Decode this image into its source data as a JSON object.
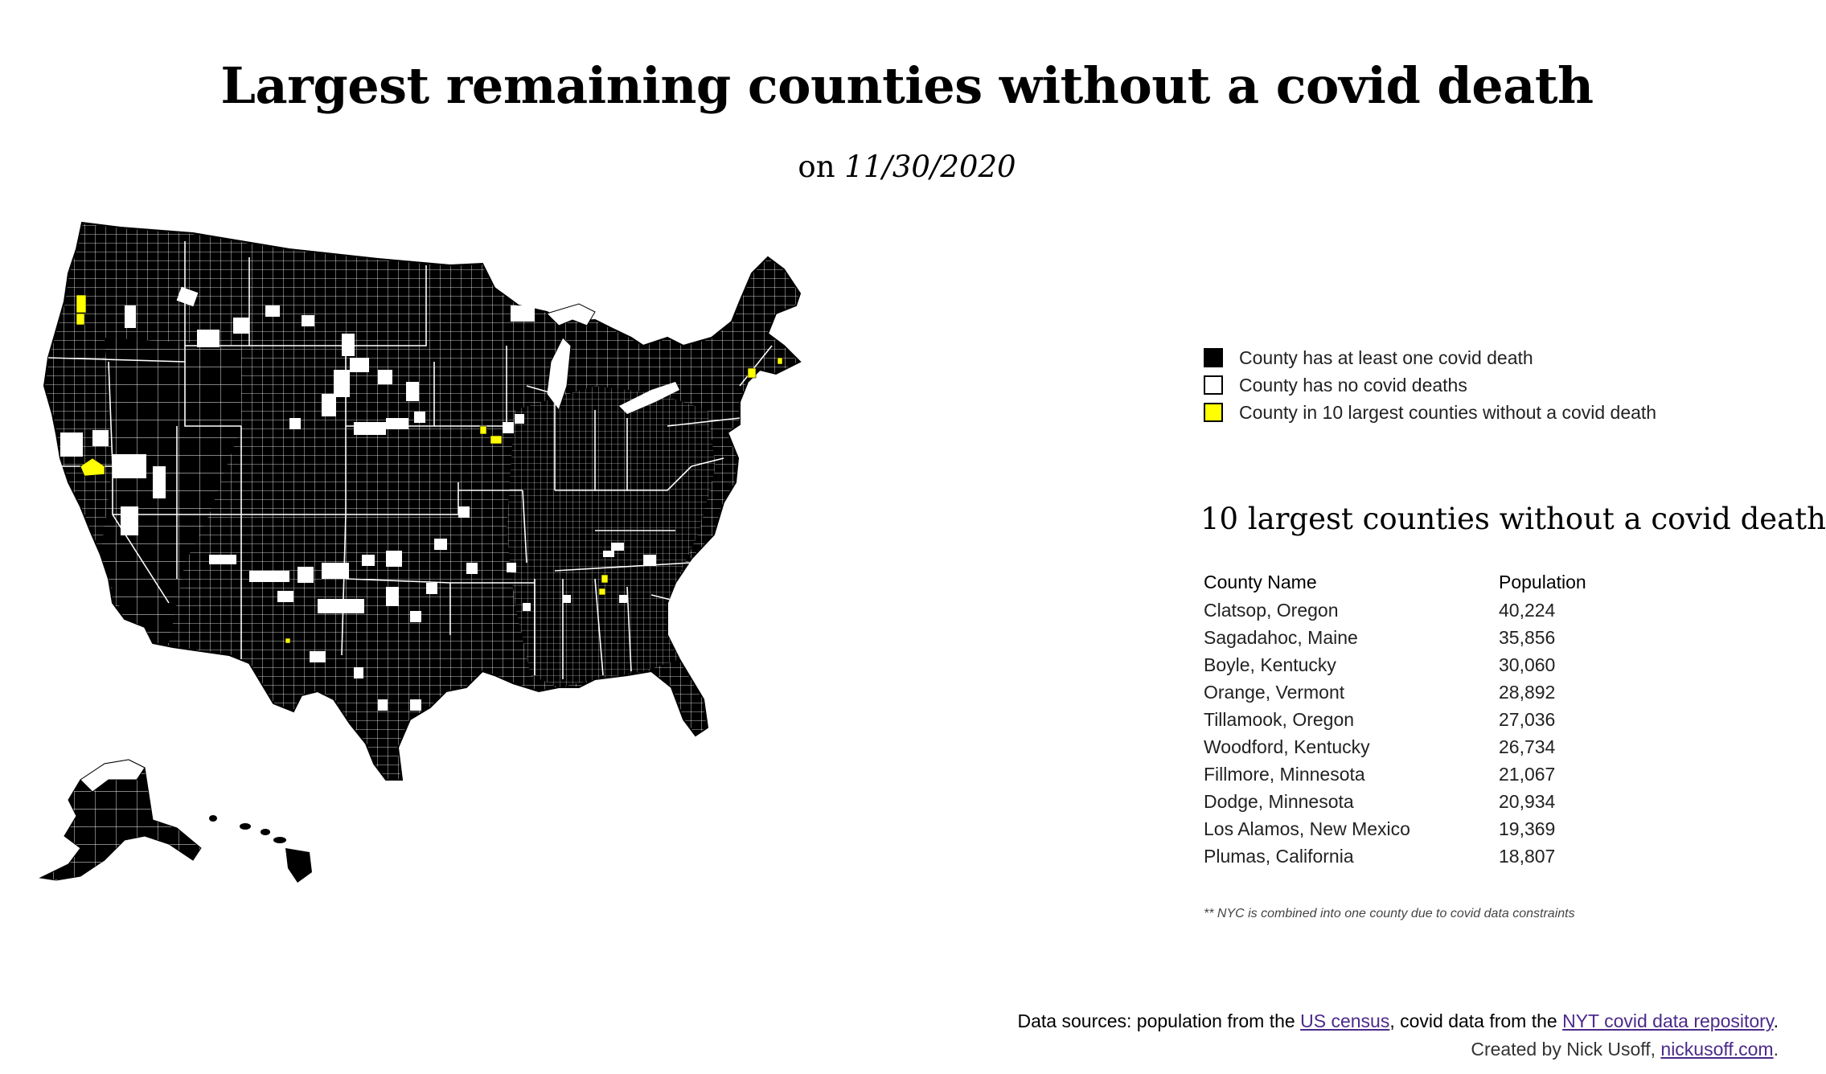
{
  "title": "Largest remaining counties without a covid death",
  "subtitle": {
    "prefix": "on",
    "date": "11/30/2020"
  },
  "legend": [
    {
      "label": "County has at least one covid death",
      "color": "#000000"
    },
    {
      "label": "County has no covid deaths",
      "color": "#ffffff"
    },
    {
      "label": "County in 10 largest counties without a covid death",
      "color": "#ffff00"
    }
  ],
  "table": {
    "title": "10 largest counties without a covid death",
    "headers": [
      "County Name",
      "Population"
    ],
    "rows": [
      [
        "Clatsop, Oregon",
        "40,224"
      ],
      [
        "Sagadahoc, Maine",
        "35,856"
      ],
      [
        "Boyle, Kentucky",
        "30,060"
      ],
      [
        "Orange, Vermont",
        "28,892"
      ],
      [
        "Tillamook, Oregon",
        "27,036"
      ],
      [
        "Woodford, Kentucky",
        "26,734"
      ],
      [
        "Fillmore, Minnesota",
        "21,067"
      ],
      [
        "Dodge, Minnesota",
        "20,934"
      ],
      [
        "Los Alamos, New Mexico",
        "19,369"
      ],
      [
        "Plumas, California",
        "18,807"
      ]
    ]
  },
  "footnote": "** NYC is combined into one county due to covid data constraints",
  "sources": {
    "prefix": "Data sources: population from the",
    "census_link": "US census",
    "middle": ", covid data from the",
    "nyt_link": "NYT covid data repository",
    "suffix": "."
  },
  "credits": {
    "prefix": "Created by Nick Usoff,",
    "link": "nickusoff.com",
    "suffix": "."
  },
  "colors": {
    "death": "#000000",
    "no_death": "#ffffff",
    "top10": "#ffff00",
    "border": "#ffffff"
  }
}
